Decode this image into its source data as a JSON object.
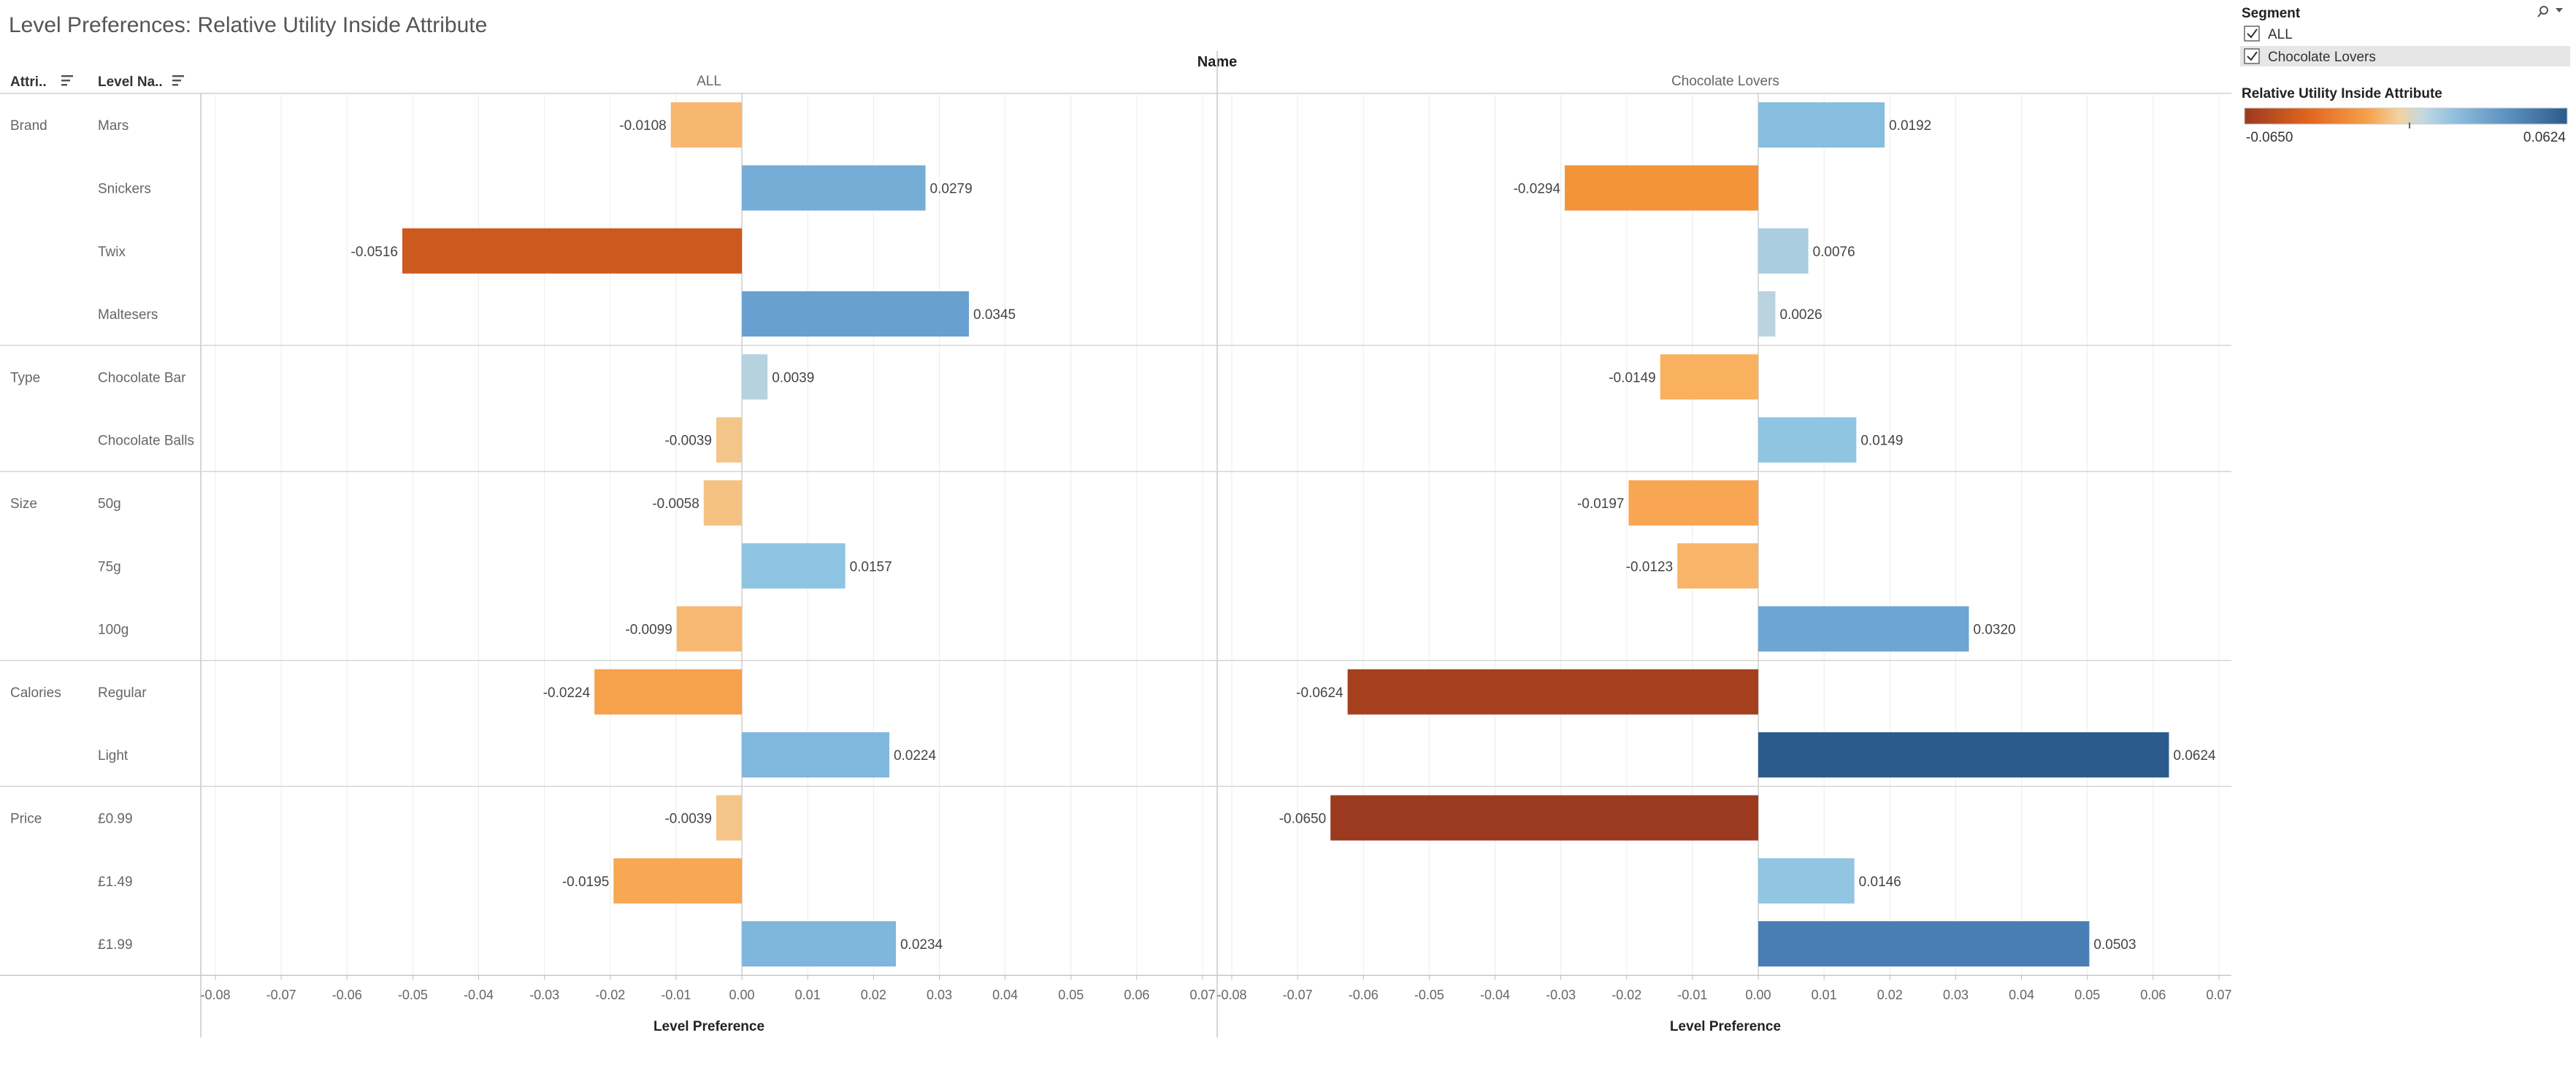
{
  "title": "Level Preferences: Relative Utility Inside Attribute",
  "header": {
    "attribute_col": "Attri..",
    "level_col": "Level Na..",
    "name_col": "Name"
  },
  "segment_filter": {
    "title": "Segment",
    "items": [
      {
        "label": "ALL",
        "checked": true
      },
      {
        "label": "Chocolate Lovers",
        "checked": true
      }
    ]
  },
  "color_legend": {
    "title": "Relative Utility Inside Attribute",
    "min_label": "-0.0650",
    "max_label": "0.0624"
  },
  "chart_data": {
    "type": "bar",
    "orientation": "horizontal",
    "xlabel": "Level Preference",
    "xlim": [
      -0.08,
      0.07
    ],
    "xticks": [
      "-0.08",
      "-0.07",
      "-0.06",
      "-0.05",
      "-0.04",
      "-0.03",
      "-0.02",
      "-0.01",
      "0.00",
      "0.01",
      "0.02",
      "0.03",
      "0.04",
      "0.05",
      "0.06",
      "0.07"
    ],
    "color_scale": {
      "min": -0.065,
      "max": 0.0624
    },
    "rows": [
      {
        "attribute": "Brand",
        "level": "Mars"
      },
      {
        "attribute": "",
        "level": "Snickers"
      },
      {
        "attribute": "",
        "level": "Twix"
      },
      {
        "attribute": "",
        "level": "Maltesers"
      },
      {
        "attribute": "Type",
        "level": "Chocolate Bar"
      },
      {
        "attribute": "",
        "level": "Chocolate Balls"
      },
      {
        "attribute": "Size",
        "level": "50g"
      },
      {
        "attribute": "",
        "level": "75g"
      },
      {
        "attribute": "",
        "level": "100g"
      },
      {
        "attribute": "Calories",
        "level": "Regular"
      },
      {
        "attribute": "",
        "level": "Light"
      },
      {
        "attribute": "Price",
        "level": "£0.99"
      },
      {
        "attribute": "",
        "level": "£1.49"
      },
      {
        "attribute": "",
        "level": "£1.99"
      }
    ],
    "series": [
      {
        "name": "ALL",
        "values": [
          -0.0108,
          0.0279,
          -0.0516,
          0.0345,
          0.0039,
          -0.0039,
          -0.0058,
          0.0157,
          -0.0099,
          -0.0224,
          0.0224,
          -0.0039,
          -0.0195,
          0.0234
        ],
        "labels": [
          "-0.0108",
          "0.0279",
          "-0.0516",
          "0.0345",
          "0.0039",
          "-0.0039",
          "-0.0058",
          "0.0157",
          "-0.0099",
          "-0.0224",
          "0.0224",
          "-0.0039",
          "-0.0195",
          "0.0234"
        ]
      },
      {
        "name": "Chocolate Lovers",
        "values": [
          0.0192,
          -0.0294,
          0.0076,
          0.0026,
          -0.0149,
          0.0149,
          -0.0197,
          -0.0123,
          0.032,
          -0.0624,
          0.0624,
          -0.065,
          0.0146,
          0.0503
        ],
        "labels": [
          "0.0192",
          "-0.0294",
          "0.0076",
          "0.0026",
          "-0.0149",
          "0.0149",
          "-0.0197",
          "-0.0123",
          "0.0320",
          "-0.0624",
          "0.0624",
          "-0.0650",
          "0.0146",
          "0.0503"
        ]
      }
    ]
  }
}
